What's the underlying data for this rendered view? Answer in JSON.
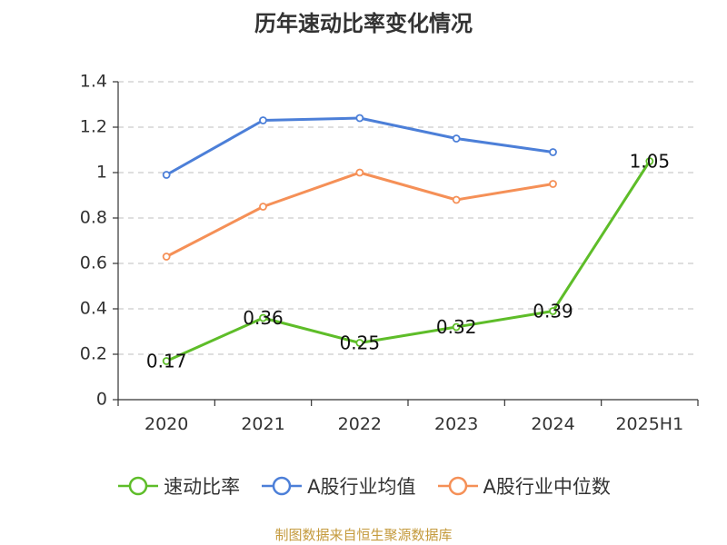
{
  "chart_data": {
    "type": "line",
    "title": "历年速动比率变化情况",
    "categories": [
      "2020",
      "2021",
      "2022",
      "2023",
      "2024",
      "2025H1"
    ],
    "yticks": [
      "0",
      "0.2",
      "0.4",
      "0.6",
      "0.8",
      "1",
      "1.2",
      "1.4"
    ],
    "ylim": [
      0,
      1.4
    ],
    "grid": true,
    "legend_position": "bottom",
    "series": [
      {
        "name": "速动比率",
        "color": "#5ebd29",
        "values": [
          0.17,
          0.36,
          0.25,
          0.32,
          0.39,
          1.05
        ],
        "labels": [
          "0.17",
          "0.36",
          "0.25",
          "0.32",
          "0.39",
          "1.05"
        ]
      },
      {
        "name": "A股行业均值",
        "color": "#4c7fd8",
        "values": [
          0.99,
          1.23,
          1.24,
          1.15,
          1.09,
          null
        ]
      },
      {
        "name": "A股行业中位数",
        "color": "#f59057",
        "values": [
          0.63,
          0.85,
          1.0,
          0.88,
          0.95,
          null
        ]
      }
    ]
  },
  "footer": {
    "source": "制图数据来自恒生聚源数据库"
  }
}
